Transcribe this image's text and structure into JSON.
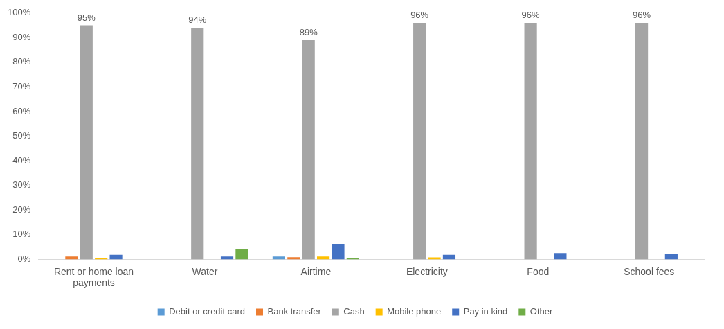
{
  "chart_data": {
    "type": "bar",
    "categories": [
      "Rent or home loan payments",
      "Water",
      "Airtime",
      "Electricity",
      "Food",
      "School fees"
    ],
    "series": [
      {
        "name": "Debit or credit card",
        "color": "#5b9bd5",
        "values": [
          null,
          null,
          1.2,
          null,
          null,
          null
        ]
      },
      {
        "name": "Bank transfer",
        "color": "#ed7d31",
        "values": [
          1.2,
          null,
          0.9,
          null,
          null,
          null
        ]
      },
      {
        "name": "Cash",
        "color": "#a5a5a5",
        "values": [
          95,
          94,
          89,
          96,
          96,
          96
        ],
        "value_labels": [
          "95%",
          "94%",
          "89%",
          "96%",
          "96%",
          "96%"
        ]
      },
      {
        "name": "Mobile phone",
        "color": "#ffc000",
        "values": [
          0.5,
          null,
          1.2,
          0.8,
          null,
          null
        ]
      },
      {
        "name": "Pay in kind",
        "color": "#4472c4",
        "values": [
          1.9,
          1.2,
          6.1,
          1.9,
          2.6,
          2.3
        ]
      },
      {
        "name": "Other",
        "color": "#70ad47",
        "values": [
          null,
          4.3,
          0.4,
          null,
          null,
          null
        ]
      }
    ],
    "ylim": [
      0,
      100
    ],
    "yticks": [
      {
        "value": 0,
        "label": "0%"
      },
      {
        "value": 10,
        "label": "10%"
      },
      {
        "value": 20,
        "label": "20%"
      },
      {
        "value": 30,
        "label": "30%"
      },
      {
        "value": 40,
        "label": "40%"
      },
      {
        "value": 50,
        "label": "50%"
      },
      {
        "value": 60,
        "label": "60%"
      },
      {
        "value": 70,
        "label": "70%"
      },
      {
        "value": 80,
        "label": "80%"
      },
      {
        "value": 90,
        "label": "90%"
      },
      {
        "value": 100,
        "label": "100%"
      }
    ],
    "legend": "bottom"
  }
}
